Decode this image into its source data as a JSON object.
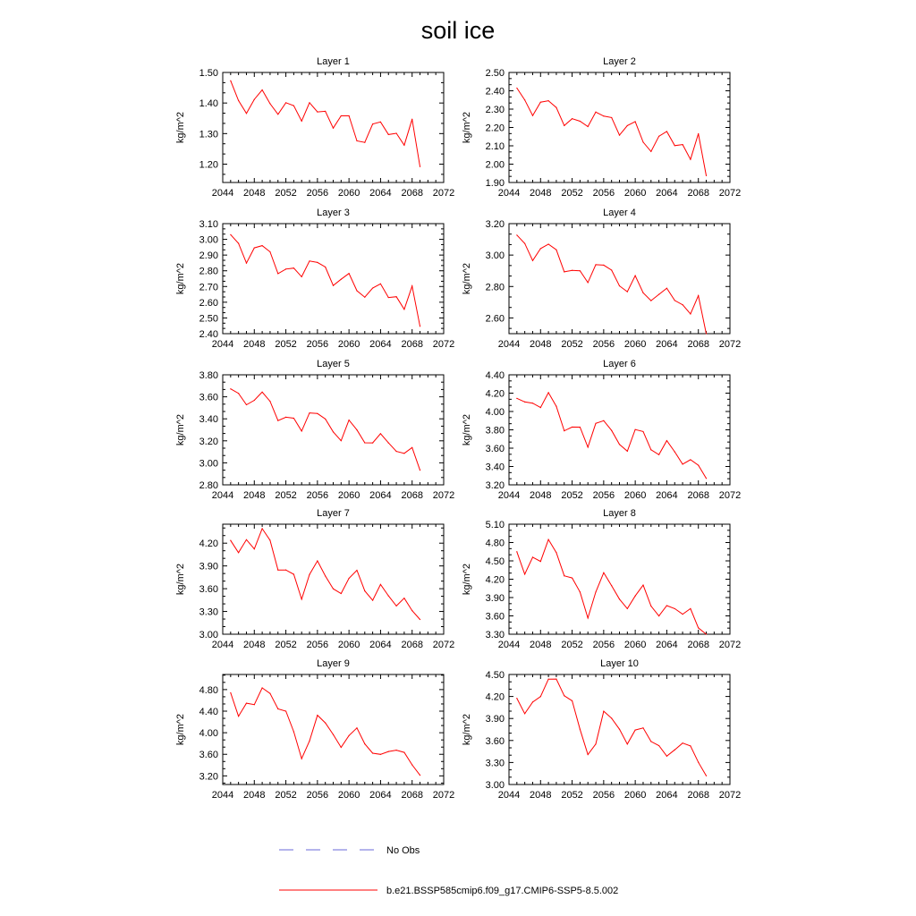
{
  "title": "soil ice",
  "ylabel": "kg/m^2",
  "xticks": [
    "2044",
    "2048",
    "2052",
    "2056",
    "2060",
    "2064",
    "2068",
    "2072"
  ],
  "xlim": [
    2044,
    2072
  ],
  "years": [
    2045,
    2046,
    2047,
    2048,
    2049,
    2050,
    2051,
    2052,
    2053,
    2054,
    2055,
    2056,
    2057,
    2058,
    2059,
    2060,
    2061,
    2062,
    2063,
    2064,
    2065,
    2066,
    2067,
    2068,
    2069
  ],
  "legend": {
    "obs_label": "No Obs",
    "model_label": "b.e21.BSSP585cmip6.f09_g17.CMIP6-SSP5-8.5.002"
  },
  "colors": {
    "model": "#ff0000",
    "obs": "#6a6ad8",
    "axes": "#000000"
  },
  "chart_data": [
    {
      "type": "line",
      "title": "Layer 1",
      "ylim": [
        1.14,
        1.5
      ],
      "yticks": [
        "1.20",
        "1.30",
        "1.40",
        "1.50"
      ],
      "series": [
        {
          "values": [
            1.473,
            1.408,
            1.366,
            1.412,
            1.443,
            1.398,
            1.363,
            1.401,
            1.391,
            1.341,
            1.401,
            1.371,
            1.373,
            1.318,
            1.358,
            1.358,
            1.276,
            1.271,
            1.331,
            1.338,
            1.297,
            1.301,
            1.262,
            1.347,
            1.192
          ]
        }
      ]
    },
    {
      "type": "line",
      "title": "Layer 2",
      "ylim": [
        1.9,
        2.5
      ],
      "yticks": [
        "1.90",
        "2.00",
        "2.10",
        "2.20",
        "2.30",
        "2.40",
        "2.50"
      ],
      "series": [
        {
          "values": [
            2.415,
            2.35,
            2.265,
            2.338,
            2.346,
            2.309,
            2.21,
            2.248,
            2.234,
            2.205,
            2.284,
            2.262,
            2.254,
            2.158,
            2.21,
            2.232,
            2.12,
            2.069,
            2.152,
            2.178,
            2.101,
            2.107,
            2.026,
            2.166,
            1.937
          ]
        }
      ]
    },
    {
      "type": "line",
      "title": "Layer 3",
      "ylim": [
        2.4,
        3.1
      ],
      "yticks": [
        "2.40",
        "2.50",
        "2.60",
        "2.70",
        "2.80",
        "2.90",
        "3.00",
        "3.10"
      ],
      "series": [
        {
          "values": [
            3.03,
            2.975,
            2.849,
            2.946,
            2.96,
            2.921,
            2.782,
            2.811,
            2.817,
            2.762,
            2.862,
            2.853,
            2.824,
            2.706,
            2.746,
            2.783,
            2.673,
            2.632,
            2.69,
            2.717,
            2.63,
            2.635,
            2.555,
            2.703,
            2.447
          ]
        }
      ]
    },
    {
      "type": "line",
      "title": "Layer 4",
      "ylim": [
        2.5,
        3.2
      ],
      "yticks": [
        "2.60",
        "2.80",
        "3.00",
        "3.20"
      ],
      "series": [
        {
          "values": [
            3.127,
            3.074,
            2.965,
            3.041,
            3.069,
            3.034,
            2.893,
            2.903,
            2.9,
            2.825,
            2.939,
            2.936,
            2.904,
            2.804,
            2.767,
            2.869,
            2.76,
            2.71,
            2.75,
            2.789,
            2.711,
            2.684,
            2.625,
            2.742,
            2.5
          ]
        }
      ]
    },
    {
      "type": "line",
      "title": "Layer 5",
      "ylim": [
        2.8,
        3.8
      ],
      "yticks": [
        "2.80",
        "3.00",
        "3.20",
        "3.40",
        "3.60",
        "3.80"
      ],
      "series": [
        {
          "values": [
            3.672,
            3.632,
            3.528,
            3.568,
            3.643,
            3.559,
            3.384,
            3.415,
            3.406,
            3.289,
            3.454,
            3.448,
            3.398,
            3.281,
            3.201,
            3.389,
            3.299,
            3.182,
            3.181,
            3.265,
            3.181,
            3.104,
            3.086,
            3.139,
            2.933
          ]
        }
      ]
    },
    {
      "type": "line",
      "title": "Layer 6",
      "ylim": [
        3.2,
        4.4
      ],
      "yticks": [
        "3.20",
        "3.40",
        "3.60",
        "3.80",
        "4.00",
        "4.20",
        "4.40"
      ],
      "series": [
        {
          "values": [
            4.143,
            4.104,
            4.091,
            4.043,
            4.206,
            4.057,
            3.789,
            3.83,
            3.829,
            3.611,
            3.87,
            3.9,
            3.793,
            3.641,
            3.567,
            3.803,
            3.781,
            3.582,
            3.529,
            3.682,
            3.56,
            3.425,
            3.474,
            3.414,
            3.271
          ]
        }
      ]
    },
    {
      "type": "line",
      "title": "Layer 7",
      "ylim": [
        3.0,
        4.45
      ],
      "yticks": [
        "3.00",
        "3.30",
        "3.60",
        "3.90",
        "4.20"
      ],
      "series": [
        {
          "values": [
            4.236,
            4.075,
            4.246,
            4.123,
            4.392,
            4.238,
            3.847,
            3.847,
            3.79,
            3.461,
            3.787,
            3.967,
            3.767,
            3.599,
            3.536,
            3.737,
            3.843,
            3.571,
            3.447,
            3.656,
            3.506,
            3.373,
            3.475,
            3.311,
            3.194
          ]
        }
      ]
    },
    {
      "type": "line",
      "title": "Layer 8",
      "ylim": [
        3.3,
        5.1
      ],
      "yticks": [
        "3.30",
        "3.60",
        "3.90",
        "4.20",
        "4.50",
        "4.80",
        "5.10"
      ],
      "series": [
        {
          "values": [
            4.65,
            4.282,
            4.56,
            4.491,
            4.85,
            4.636,
            4.255,
            4.22,
            3.991,
            3.565,
            3.99,
            4.307,
            4.095,
            3.874,
            3.719,
            3.926,
            4.103,
            3.761,
            3.598,
            3.768,
            3.718,
            3.628,
            3.719,
            3.404,
            3.3
          ]
        }
      ]
    },
    {
      "type": "line",
      "title": "Layer 9",
      "ylim": [
        3.04,
        5.08
      ],
      "yticks": [
        "3.20",
        "3.60",
        "4.00",
        "4.40",
        "4.80"
      ],
      "series": [
        {
          "values": [
            4.741,
            4.306,
            4.548,
            4.521,
            4.831,
            4.729,
            4.442,
            4.4,
            4.019,
            3.519,
            3.847,
            4.324,
            4.183,
            3.967,
            3.728,
            3.947,
            4.089,
            3.793,
            3.62,
            3.599,
            3.652,
            3.677,
            3.636,
            3.405,
            3.212
          ]
        }
      ]
    },
    {
      "type": "line",
      "title": "Layer 10",
      "ylim": [
        3.0,
        4.5
      ],
      "yticks": [
        "3.00",
        "3.30",
        "3.60",
        "3.90",
        "4.20",
        "4.50"
      ],
      "series": [
        {
          "values": [
            4.175,
            3.966,
            4.125,
            4.199,
            4.437,
            4.438,
            4.21,
            4.142,
            3.753,
            3.408,
            3.551,
            3.999,
            3.904,
            3.754,
            3.551,
            3.743,
            3.771,
            3.586,
            3.53,
            3.386,
            3.473,
            3.565,
            3.526,
            3.303,
            3.119
          ]
        }
      ]
    }
  ]
}
